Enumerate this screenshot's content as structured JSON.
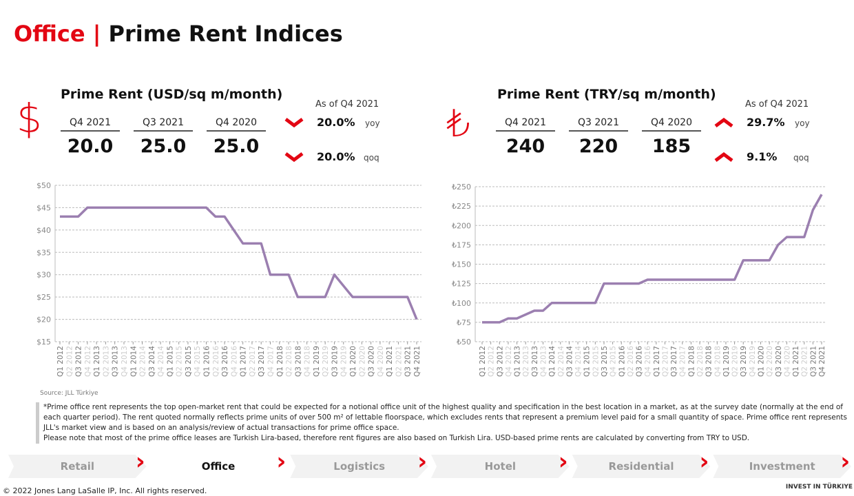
{
  "header": {
    "section": "Office",
    "separator": "|",
    "title": "Prime Rent Indices"
  },
  "kpis": [
    {
      "periods": [
        {
          "label": "Q4 2021",
          "value": "20.0"
        },
        {
          "label": "Q3 2021",
          "value": "25.0"
        },
        {
          "label": "Q4 2020",
          "value": "25.0"
        }
      ],
      "as_of": "As of Q4 2021",
      "changes": [
        {
          "value": "20.0%",
          "label": "yoy"
        },
        {
          "value": "20.0%",
          "label": "qoq"
        }
      ]
    },
    {
      "periods": [
        {
          "label": "Q4 2021",
          "value": "240"
        },
        {
          "label": "Q3 2021",
          "value": "220"
        },
        {
          "label": "Q4 2020",
          "value": "185"
        }
      ],
      "as_of": "As of Q4 2021",
      "changes": [
        {
          "value": "29.7%",
          "label": "yoy"
        },
        {
          "value": "9.1%",
          "label": "qoq"
        }
      ]
    }
  ],
  "chart_data": [
    {
      "type": "line",
      "title": "Prime Rent (USD/sq m/month)",
      "color": "#9b7fb0",
      "grid": true,
      "categories": [
        "Q1 2012",
        "Q2 2012",
        "Q3 2012",
        "Q4 2012",
        "Q1 2013",
        "Q2 2013",
        "Q3 2013",
        "Q4 2013",
        "Q1 2014",
        "Q2 2014",
        "Q3 2014",
        "Q4 2014",
        "Q1 2015",
        "Q2 2015",
        "Q3 2015",
        "Q4 2015",
        "Q1 2016",
        "Q2 2016",
        "Q3 2016",
        "Q4 2016",
        "Q1 2017",
        "Q2 2017",
        "Q3 2017",
        "Q4 2017",
        "Q1 2018",
        "Q2 2018",
        "Q3 2018",
        "Q4 2018",
        "Q1 2019",
        "Q2 2019",
        "Q3 2019",
        "Q4 2019",
        "Q1 2020",
        "Q2 2020",
        "Q3 2020",
        "Q4 2020",
        "Q1 2021",
        "Q2 2021",
        "Q3 2021",
        "Q4 2021"
      ],
      "values": [
        43,
        43,
        43,
        45,
        45,
        45,
        45,
        45,
        45,
        45,
        45,
        45,
        45,
        45,
        45,
        45,
        45,
        43,
        43,
        40,
        37,
        37,
        37,
        30,
        30,
        30,
        25,
        25,
        25,
        25,
        30,
        27.5,
        25,
        25,
        25,
        25,
        25,
        25,
        25,
        20
      ],
      "ylim": [
        15,
        50
      ],
      "yticks": [
        {
          "value": 15,
          "label": "$15"
        },
        {
          "value": 20,
          "label": "$20"
        },
        {
          "value": 25,
          "label": "$25"
        },
        {
          "value": 30,
          "label": "$30"
        },
        {
          "value": 35,
          "label": "$35"
        },
        {
          "value": 40,
          "label": "$40"
        },
        {
          "value": 45,
          "label": "$45"
        },
        {
          "value": 50,
          "label": "$50"
        }
      ]
    },
    {
      "type": "line",
      "title": "Prime Rent (TRY/sq m/month)",
      "color": "#9b7fb0",
      "grid": true,
      "categories": [
        "Q1 2012",
        "Q2 2012",
        "Q3 2012",
        "Q4 2012",
        "Q1 2013",
        "Q2 2013",
        "Q3 2013",
        "Q4 2013",
        "Q1 2014",
        "Q2 2014",
        "Q3 2014",
        "Q4 2014",
        "Q1 2015",
        "Q2 2015",
        "Q3 2015",
        "Q4 2015",
        "Q1 2016",
        "Q2 2016",
        "Q3 2016",
        "Q4 2016",
        "Q1 2017",
        "Q2 2017",
        "Q3 2017",
        "Q4 2017",
        "Q1 2018",
        "Q2 2018",
        "Q3 2018",
        "Q4 2018",
        "Q1 2019",
        "Q2 2019",
        "Q3 2019",
        "Q4 2019",
        "Q1 2020",
        "Q2 2020",
        "Q3 2020",
        "Q4 2020",
        "Q1 2021",
        "Q2 2021",
        "Q3 2021",
        "Q4 2021"
      ],
      "values": [
        75,
        75,
        75,
        80,
        80,
        85,
        90,
        90,
        100,
        100,
        100,
        100,
        100,
        100,
        125,
        125,
        125,
        125,
        125,
        130,
        130,
        130,
        130,
        130,
        130,
        130,
        130,
        130,
        130,
        130,
        155,
        155,
        155,
        155,
        175,
        185,
        185,
        185,
        220,
        240
      ],
      "ylim": [
        50,
        250
      ],
      "yticks": [
        {
          "value": 50,
          "label": "₺50"
        },
        {
          "value": 75,
          "label": "₺75"
        },
        {
          "value": 100,
          "label": "₺100"
        },
        {
          "value": 125,
          "label": "₺125"
        },
        {
          "value": 150,
          "label": "₺150"
        },
        {
          "value": 175,
          "label": "₺175"
        },
        {
          "value": 200,
          "label": "₺200"
        },
        {
          "value": 225,
          "label": "₺225"
        },
        {
          "value": 250,
          "label": "₺250"
        }
      ]
    }
  ],
  "source": "Source: JLL Türkiye",
  "notes": [
    "*Prime office rent represents the top open-market rent that could be expected for a notional office unit of the highest quality and specification in the best location in a market, as at the survey date (normally at the end of each quarter period). The rent quoted normally reflects prime units of over 500 m² of lettable floorspace, which excludes rents that represent a premium level paid for a small quantity of space. Prime office rent represents JLL's market view and is based on an analysis/review of actual transactions for prime office space.",
    "Please note that most of the prime office leases are Turkish Lira-based, therefore rent figures are also based on Turkish Lira. USD-based prime rents are calculated by converting from TRY  to USD."
  ],
  "nav": [
    "Retail",
    "Office",
    "Logistics",
    "Hotel",
    "Residential",
    "Investment"
  ],
  "copyright": "© 2022 Jones Lang LaSalle IP, Inc. All rights reserved.",
  "logo": "INVEST IN TÜRKIYE"
}
